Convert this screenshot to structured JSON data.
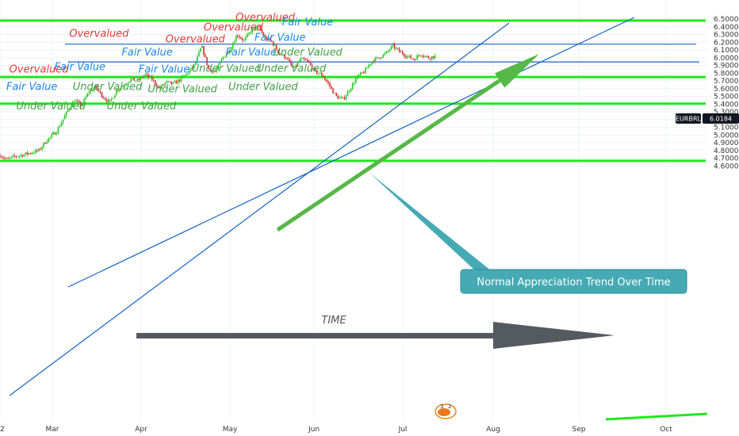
{
  "chart_data": {
    "type": "candlestick",
    "symbol": "EURBRL",
    "last_price": "6.0184",
    "ylim": [
      4.56,
      6.56
    ],
    "y_ticks": [
      "6.5000",
      "6.4000",
      "6.3000",
      "6.2000",
      "6.1000",
      "6.0000",
      "5.9000",
      "5.8000",
      "5.7000",
      "5.6000",
      "5.5000",
      "5.4000",
      "5.3000",
      "5.2000",
      "5.1000",
      "5.0000",
      "4.9000",
      "4.8000",
      "4.7000",
      "4.6000"
    ],
    "x_ticks": [
      "2",
      "Mar",
      "Apr",
      "May",
      "Jun",
      "Jul",
      "Aug",
      "Sep",
      "Oct"
    ],
    "grid": true,
    "horizontal_levels": [
      {
        "price": 6.48,
        "color": "#22e81e",
        "style": "thick"
      },
      {
        "price": 5.75,
        "color": "#22e81e",
        "style": "thick"
      },
      {
        "price": 5.405,
        "color": "#22e81e",
        "style": "thick"
      },
      {
        "price": 4.665,
        "color": "#22e81e",
        "style": "thick"
      },
      {
        "price": 6.175,
        "color": "#1565c0",
        "style": "thin"
      },
      {
        "price": 5.945,
        "color": "#1565c0",
        "style": "thin"
      }
    ],
    "price_path": [
      [
        0.0,
        4.74
      ],
      [
        0.01,
        4.68
      ],
      [
        0.02,
        4.72
      ],
      [
        0.04,
        4.76
      ],
      [
        0.055,
        4.8
      ],
      [
        0.065,
        4.92
      ],
      [
        0.08,
        5.05
      ],
      [
        0.095,
        5.3
      ],
      [
        0.105,
        5.45
      ],
      [
        0.115,
        5.38
      ],
      [
        0.125,
        5.55
      ],
      [
        0.135,
        5.62
      ],
      [
        0.145,
        5.5
      ],
      [
        0.155,
        5.42
      ],
      [
        0.165,
        5.58
      ],
      [
        0.175,
        5.65
      ],
      [
        0.185,
        5.72
      ],
      [
        0.195,
        5.7
      ],
      [
        0.205,
        5.78
      ],
      [
        0.215,
        5.72
      ],
      [
        0.225,
        5.6
      ],
      [
        0.235,
        5.68
      ],
      [
        0.245,
        5.66
      ],
      [
        0.255,
        5.72
      ],
      [
        0.265,
        5.8
      ],
      [
        0.275,
        5.9
      ],
      [
        0.285,
        6.15
      ],
      [
        0.295,
        5.85
      ],
      [
        0.305,
        5.82
      ],
      [
        0.315,
        6.0
      ],
      [
        0.325,
        6.1
      ],
      [
        0.335,
        6.3
      ],
      [
        0.345,
        6.22
      ],
      [
        0.355,
        6.35
      ],
      [
        0.365,
        6.4
      ],
      [
        0.375,
        6.25
      ],
      [
        0.385,
        6.2
      ],
      [
        0.395,
        6.05
      ],
      [
        0.405,
        6.0
      ],
      [
        0.415,
        5.85
      ],
      [
        0.425,
        5.98
      ],
      [
        0.435,
        5.95
      ],
      [
        0.445,
        5.82
      ],
      [
        0.455,
        5.78
      ],
      [
        0.465,
        5.65
      ],
      [
        0.475,
        5.5
      ],
      [
        0.485,
        5.46
      ],
      [
        0.495,
        5.6
      ],
      [
        0.505,
        5.75
      ],
      [
        0.515,
        5.82
      ],
      [
        0.525,
        5.95
      ],
      [
        0.535,
        6.0
      ],
      [
        0.545,
        6.05
      ],
      [
        0.555,
        6.15
      ],
      [
        0.565,
        6.08
      ],
      [
        0.575,
        6.02
      ],
      [
        0.585,
        5.98
      ],
      [
        0.595,
        6.05
      ],
      [
        0.605,
        6.0
      ],
      [
        0.615,
        6.02
      ]
    ],
    "annotations": [
      {
        "text": "Overvalued",
        "color": "#e53935",
        "x": 0.375,
        "y": 6.48
      },
      {
        "text": "Overvalued",
        "color": "#e53935",
        "x": 0.33,
        "y": 6.35
      },
      {
        "text": "Overvalued",
        "color": "#e53935",
        "x": 0.14,
        "y": 6.27
      },
      {
        "text": "Overvalued",
        "color": "#e53935",
        "x": 0.276,
        "y": 6.2
      },
      {
        "text": "Overvalued",
        "color": "#e53935",
        "x": 0.055,
        "y": 5.81
      },
      {
        "text": "Fair Value",
        "color": "#1e88e5",
        "x": 0.435,
        "y": 6.42
      },
      {
        "text": "Fair Value",
        "color": "#1e88e5",
        "x": 0.396,
        "y": 6.22
      },
      {
        "text": "Fair Value",
        "color": "#1e88e5",
        "x": 0.208,
        "y": 6.03
      },
      {
        "text": "Fair Value",
        "color": "#1e88e5",
        "x": 0.355,
        "y": 6.03
      },
      {
        "text": "Fair Value",
        "color": "#1e88e5",
        "x": 0.113,
        "y": 5.84
      },
      {
        "text": "Fair Value",
        "color": "#1e88e5",
        "x": 0.232,
        "y": 5.81
      },
      {
        "text": "Fair Value",
        "color": "#1e88e5",
        "x": 0.045,
        "y": 5.58
      },
      {
        "text": "Under Valued",
        "color": "#43a047",
        "x": 0.435,
        "y": 6.03
      },
      {
        "text": "Under Valued",
        "color": "#43a047",
        "x": 0.32,
        "y": 5.82
      },
      {
        "text": "Under Valued",
        "color": "#43a047",
        "x": 0.412,
        "y": 5.82
      },
      {
        "text": "Under Valued",
        "color": "#43a047",
        "x": 0.152,
        "y": 5.58
      },
      {
        "text": "Under Valued",
        "color": "#43a047",
        "x": 0.258,
        "y": 5.55
      },
      {
        "text": "Under Valued",
        "color": "#43a047",
        "x": 0.372,
        "y": 5.58
      },
      {
        "text": "Under Valued",
        "color": "#43a047",
        "x": 0.072,
        "y": 5.33
      },
      {
        "text": "Under Valued",
        "color": "#43a047",
        "x": 0.2,
        "y": 5.33
      }
    ],
    "callout": {
      "text": "Normal Appreciation Trend Over Time",
      "bg": "#45aab4"
    },
    "time_label": "TIME",
    "colors": {
      "up": "#22c91f",
      "down": "#d32f2f",
      "trend_arrow": "#56b846",
      "time_arrow": "#555a60",
      "channel": "#1565c0"
    }
  }
}
